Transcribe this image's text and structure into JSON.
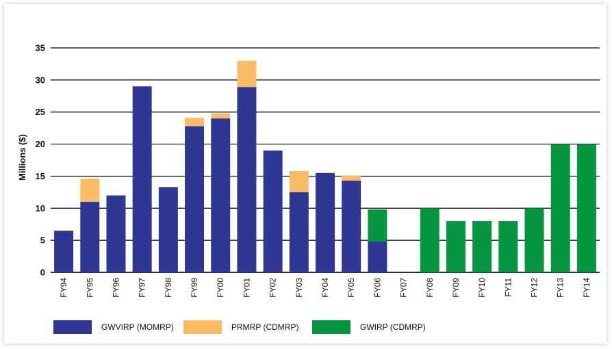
{
  "chart_data": {
    "type": "bar",
    "stacked": true,
    "ylabel": "Millions ($)",
    "ylim": [
      0,
      35
    ],
    "yticks": [
      0,
      5,
      10,
      15,
      20,
      25,
      30,
      35
    ],
    "grid": true,
    "legend_position": "bottom",
    "categories": [
      "FY94",
      "FY95",
      "FY96",
      "FY97",
      "FY98",
      "FY99",
      "FY00",
      "FY01",
      "FY02",
      "FY03",
      "FY04",
      "FY05",
      "FY06",
      "FY07",
      "FY08",
      "FY09",
      "FY10",
      "FY11",
      "FY12",
      "FY13",
      "FY14"
    ],
    "series": [
      {
        "name": "GWVIRP (MOMRP)",
        "color": "#2e3793",
        "values": [
          6.5,
          11,
          12,
          29,
          13.3,
          22.8,
          24,
          28.9,
          19,
          12.5,
          15.5,
          14.3,
          4.8,
          0,
          0,
          0,
          0,
          0,
          0,
          0,
          0
        ]
      },
      {
        "name": "PRMRP (CDMRP)",
        "color": "#fbbc67",
        "values": [
          0,
          3.6,
          0,
          0,
          0,
          1.3,
          0.8,
          4.1,
          0,
          3.3,
          0,
          0.8,
          0,
          0,
          0,
          0,
          0,
          0,
          0,
          0,
          0
        ]
      },
      {
        "name": "GWIRP (CDMRP)",
        "color": "#05963f",
        "values": [
          0,
          0,
          0,
          0,
          0,
          0,
          0,
          0,
          0,
          0,
          0,
          0,
          5,
          0,
          10,
          8,
          8,
          8,
          10,
          20,
          20
        ]
      }
    ]
  }
}
